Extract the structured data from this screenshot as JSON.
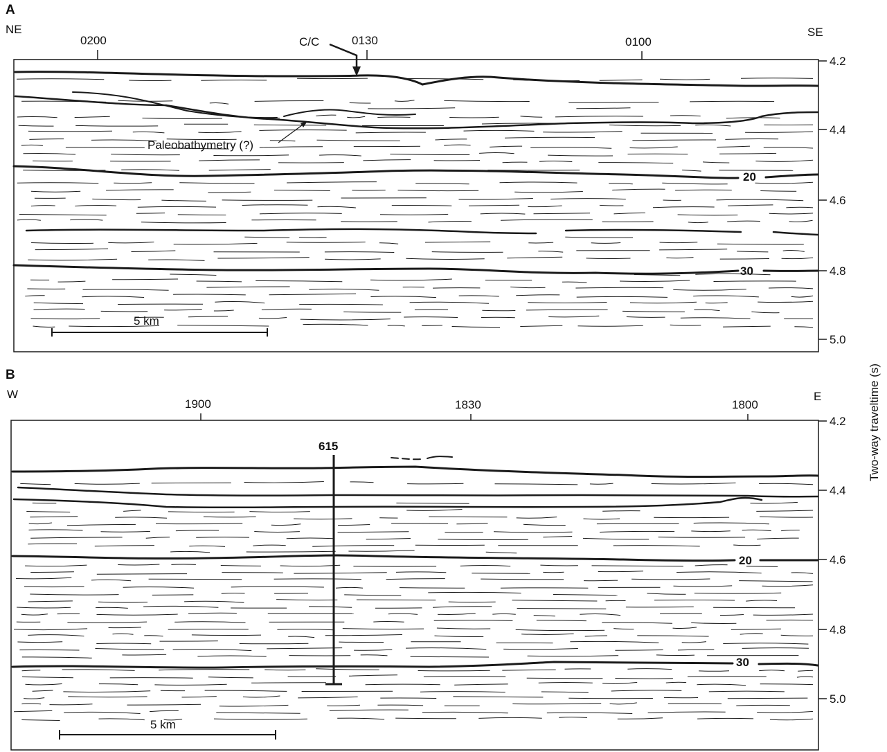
{
  "panels": {
    "a": {
      "letter": "A",
      "left_dir": "NE",
      "right_dir": "SE",
      "shotpoints": [
        "0200",
        "0130",
        "0100"
      ],
      "cc_label": "C/C",
      "paleo_label": "Paleobathymetry (?)",
      "time_ticks": [
        {
          "label": "4.2",
          "value": 4.2
        },
        {
          "label": "4.4",
          "value": 4.4
        },
        {
          "label": "4.6",
          "value": 4.6
        },
        {
          "label": "4.8",
          "value": 4.8
        },
        {
          "label": "5.0",
          "value": 5.0
        }
      ],
      "horizon_labels": [
        "20",
        "30"
      ],
      "scale_label": "5 km"
    },
    "b": {
      "letter": "B",
      "left_dir": "W",
      "right_dir": "E",
      "shotpoints": [
        "1900",
        "1830",
        "1800"
      ],
      "well_label": "615",
      "time_ticks": [
        {
          "label": "4.2",
          "value": 4.2
        },
        {
          "label": "4.4",
          "value": 4.4
        },
        {
          "label": "4.6",
          "value": 4.6
        },
        {
          "label": "4.8",
          "value": 4.8
        },
        {
          "label": "5.0",
          "value": 5.0
        }
      ],
      "horizon_labels": [
        "20",
        "30"
      ],
      "scale_label": "5 km"
    }
  },
  "axis_title": "Two-way traveltime (s)",
  "colors": {
    "ink": "#1a1a1a",
    "background": "#ffffff"
  }
}
